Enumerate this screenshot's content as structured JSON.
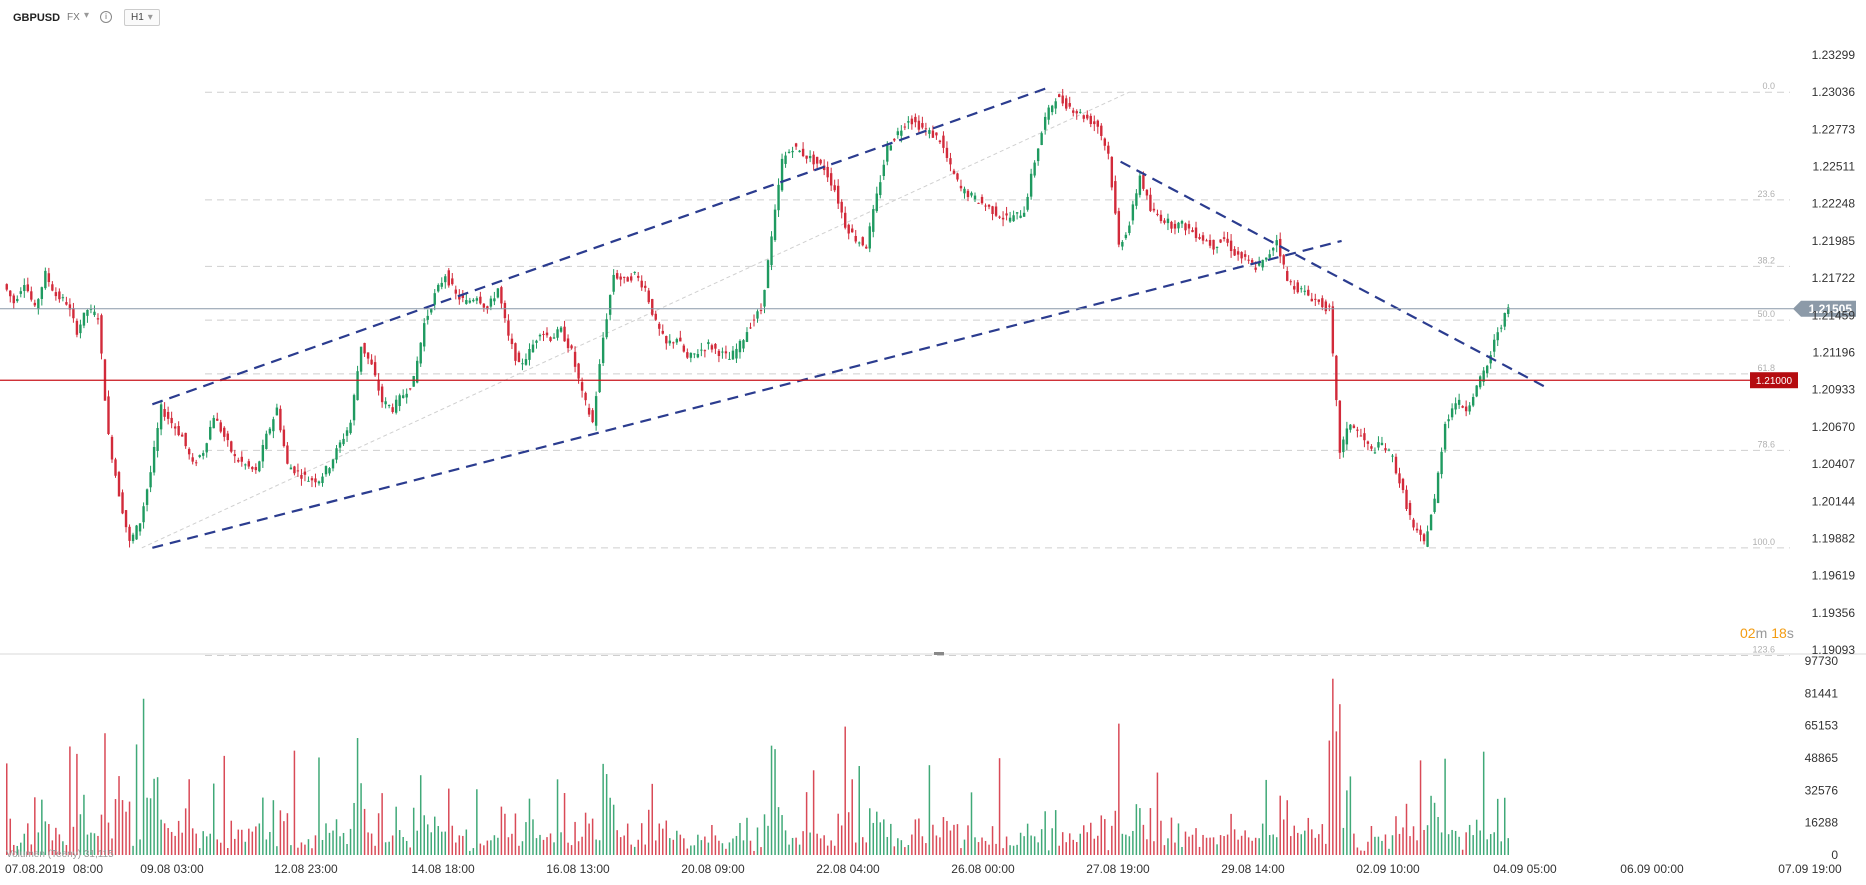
{
  "header": {
    "symbol": "GBPUSD",
    "market": "FX",
    "timeframe": "H1"
  },
  "chart_data": [
    {
      "type": "candlestick",
      "title": "",
      "ylim": [
        1.19093,
        1.23299
      ],
      "price_ticks": [
        1.23299,
        1.23036,
        1.22773,
        1.22511,
        1.22248,
        1.21985,
        1.21722,
        1.21459,
        1.21196,
        1.20933,
        1.2067,
        1.20407,
        1.20144,
        1.19882,
        1.19619,
        1.19356,
        1.19093
      ],
      "x_ticks": [
        "07.08.2019",
        "08:00",
        "09.08 03:00",
        "12.08 23:00",
        "14.08 18:00",
        "16.08 13:00",
        "20.08 09:00",
        "22.08 04:00",
        "26.08 00:00",
        "27.08 19:00",
        "29.08 14:00",
        "02.09 10:00",
        "04.09 05:00",
        "06.09 00:00",
        "07.09 19:00"
      ],
      "current_price": "1.21505",
      "horizontal_level": "1.21000",
      "countdown": {
        "minutes": "02",
        "seconds": "18",
        "m": "m",
        "s": "s"
      },
      "fibonacci": {
        "levels": [
          "0.0",
          "23.6",
          "38.2",
          "50.0",
          "61.8",
          "78.6",
          "100.0",
          "123.6"
        ],
        "prices": [
          1.23036,
          1.22275,
          1.21805,
          1.21425,
          1.21045,
          1.20504,
          1.19815,
          1.19054
        ]
      },
      "price_path": [
        [
          0,
          1.2168
        ],
        [
          1,
          1.2155
        ],
        [
          2,
          1.217
        ],
        [
          3,
          1.215
        ],
        [
          4,
          1.2175
        ],
        [
          5,
          1.216
        ],
        [
          6,
          1.2155
        ],
        [
          7,
          1.2135
        ],
        [
          8,
          1.215
        ],
        [
          9,
          1.2145
        ],
        [
          10,
          1.206
        ],
        [
          11,
          1.202
        ],
        [
          12,
          1.1985
        ],
        [
          13,
          1.2
        ],
        [
          14,
          1.2035
        ],
        [
          15,
          1.208
        ],
        [
          16,
          1.207
        ],
        [
          17,
          1.206
        ],
        [
          18,
          1.204
        ],
        [
          19,
          1.205
        ],
        [
          20,
          1.2075
        ],
        [
          21,
          1.206
        ],
        [
          22,
          1.2045
        ],
        [
          23,
          1.204
        ],
        [
          24,
          1.2035
        ],
        [
          25,
          1.206
        ],
        [
          26,
          1.208
        ],
        [
          27,
          1.204
        ],
        [
          28,
          1.2035
        ],
        [
          29,
          1.203
        ],
        [
          30,
          1.203
        ],
        [
          31,
          1.204
        ],
        [
          32,
          1.2055
        ],
        [
          33,
          1.207
        ],
        [
          34,
          1.2125
        ],
        [
          35,
          1.211
        ],
        [
          36,
          1.2085
        ],
        [
          37,
          1.208
        ],
        [
          38,
          1.209
        ],
        [
          39,
          1.21
        ],
        [
          40,
          1.214
        ],
        [
          41,
          1.216
        ],
        [
          42,
          1.2175
        ],
        [
          43,
          1.216
        ],
        [
          44,
          1.2155
        ],
        [
          45,
          1.216
        ],
        [
          46,
          1.215
        ],
        [
          47,
          1.2165
        ],
        [
          48,
          1.213
        ],
        [
          49,
          1.211
        ],
        [
          50,
          1.212
        ],
        [
          51,
          1.2135
        ],
        [
          52,
          1.213
        ],
        [
          53,
          1.2135
        ],
        [
          54,
          1.212
        ],
        [
          55,
          1.209
        ],
        [
          56,
          1.207
        ],
        [
          57,
          1.213
        ],
        [
          58,
          1.2175
        ],
        [
          59,
          1.217
        ],
        [
          60,
          1.2175
        ],
        [
          61,
          1.2165
        ],
        [
          62,
          1.214
        ],
        [
          63,
          1.2125
        ],
        [
          64,
          1.213
        ],
        [
          65,
          1.2115
        ],
        [
          66,
          1.212
        ],
        [
          67,
          1.2125
        ],
        [
          68,
          1.212
        ],
        [
          69,
          1.2115
        ],
        [
          70,
          1.2125
        ],
        [
          71,
          1.214
        ],
        [
          72,
          1.215
        ],
        [
          73,
          1.22
        ],
        [
          74,
          1.2255
        ],
        [
          75,
          1.2265
        ],
        [
          76,
          1.226
        ],
        [
          77,
          1.2255
        ],
        [
          78,
          1.225
        ],
        [
          79,
          1.2235
        ],
        [
          80,
          1.221
        ],
        [
          81,
          1.22
        ],
        [
          82,
          1.2195
        ],
        [
          83,
          1.223
        ],
        [
          84,
          1.2265
        ],
        [
          85,
          1.2275
        ],
        [
          86,
          1.2285
        ],
        [
          87,
          1.228
        ],
        [
          88,
          1.2275
        ],
        [
          89,
          1.227
        ],
        [
          90,
          1.225
        ],
        [
          91,
          1.2235
        ],
        [
          92,
          1.223
        ],
        [
          93,
          1.2225
        ],
        [
          94,
          1.222
        ],
        [
          95,
          1.2215
        ],
        [
          96,
          1.2215
        ],
        [
          97,
          1.222
        ],
        [
          98,
          1.2255
        ],
        [
          99,
          1.2285
        ],
        [
          100,
          1.23
        ],
        [
          101,
          1.2295
        ],
        [
          102,
          1.229
        ],
        [
          103,
          1.2285
        ],
        [
          104,
          1.228
        ],
        [
          105,
          1.226
        ],
        [
          106,
          1.2195
        ],
        [
          107,
          1.221
        ],
        [
          108,
          1.2245
        ],
        [
          109,
          1.222
        ],
        [
          110,
          1.2215
        ],
        [
          111,
          1.221
        ],
        [
          112,
          1.221
        ],
        [
          113,
          1.2205
        ],
        [
          114,
          1.22
        ],
        [
          115,
          1.2195
        ],
        [
          116,
          1.22
        ],
        [
          117,
          1.219
        ],
        [
          118,
          1.2185
        ],
        [
          119,
          1.218
        ],
        [
          120,
          1.2185
        ],
        [
          121,
          1.22
        ],
        [
          122,
          1.217
        ],
        [
          123,
          1.2165
        ],
        [
          124,
          1.216
        ],
        [
          125,
          1.2155
        ],
        [
          126,
          1.215
        ],
        [
          127,
          1.205
        ],
        [
          128,
          1.207
        ],
        [
          129,
          1.206
        ],
        [
          130,
          1.205
        ],
        [
          131,
          1.2055
        ],
        [
          132,
          1.2045
        ],
        [
          133,
          1.202
        ],
        [
          134,
          1.1995
        ],
        [
          135,
          1.1985
        ],
        [
          136,
          1.2015
        ],
        [
          137,
          1.207
        ],
        [
          138,
          1.2085
        ],
        [
          139,
          1.208
        ],
        [
          140,
          1.2095
        ],
        [
          141,
          1.211
        ],
        [
          142,
          1.2135
        ],
        [
          143,
          1.215
        ]
      ],
      "volume": {
        "ylim": [
          0,
          97730
        ],
        "ticks": [
          97730,
          81441,
          65153,
          48865,
          32576,
          16288,
          0
        ],
        "legend": "Volumen (Teeny) 31,115"
      }
    }
  ]
}
